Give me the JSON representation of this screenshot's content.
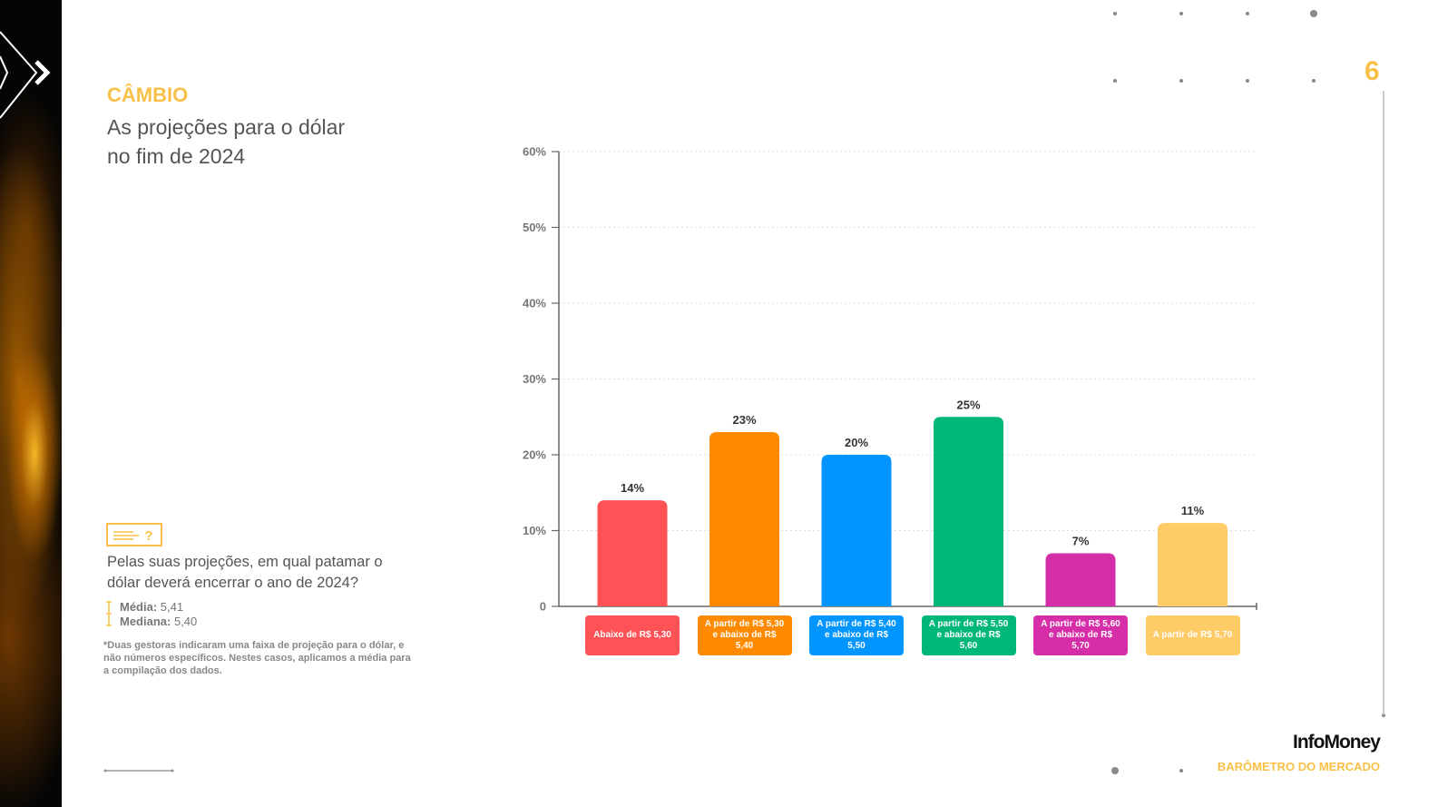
{
  "chart_data": {
    "type": "bar",
    "categories": [
      "Abaixo de R$ 5,30",
      "A partir de R$ 5,30 e abaixo de R$ 5,40",
      "A partir de R$ 5,40 e abaixo de R$ 5,50",
      "A partir de R$ 5,50 e abaixo de R$ 5,60",
      "A partir de R$ 5,60 e abaixo de R$ 5,70",
      "A partir de R$ 5,70"
    ],
    "values": [
      14,
      23,
      20,
      25,
      7,
      11
    ],
    "value_labels": [
      "14%",
      "23%",
      "20%",
      "25%",
      "7%",
      "11%"
    ],
    "colors": [
      "#ff5257",
      "#ff8a00",
      "#0095ff",
      "#00b77a",
      "#d62ea8",
      "#ffcb66"
    ],
    "ylim": [
      0,
      60
    ],
    "yticks": [
      0,
      {
        "value": 10,
        "label": "10%"
      },
      {
        "value": 20,
        "label": "20%"
      },
      {
        "value": 30,
        "label": "30%"
      },
      {
        "value": 40,
        "label": "40%"
      },
      {
        "value": 50,
        "label": "50%"
      },
      {
        "value": 60,
        "label": "60%"
      }
    ],
    "grid": true
  },
  "header": {
    "kicker": "CÂMBIO",
    "title": "As projeções para o dólar no fim de 2024",
    "page": "6"
  },
  "question": {
    "text": "Pelas suas projeções, em qual patamar o dólar deverá encerrar o ano de 2024?",
    "stats": [
      {
        "label": "Média:",
        "value": "5,41"
      },
      {
        "label": "Mediana:",
        "value": "5,40"
      }
    ],
    "note": "*Duas gestoras indicaram uma faixa de projeção para o dólar, e não números específicos. Nestes casos, aplicamos a média para a compilação dos dados."
  },
  "footer": {
    "brand": "InfoMoney",
    "section": "BARÔMETRO DO MERCADO"
  }
}
